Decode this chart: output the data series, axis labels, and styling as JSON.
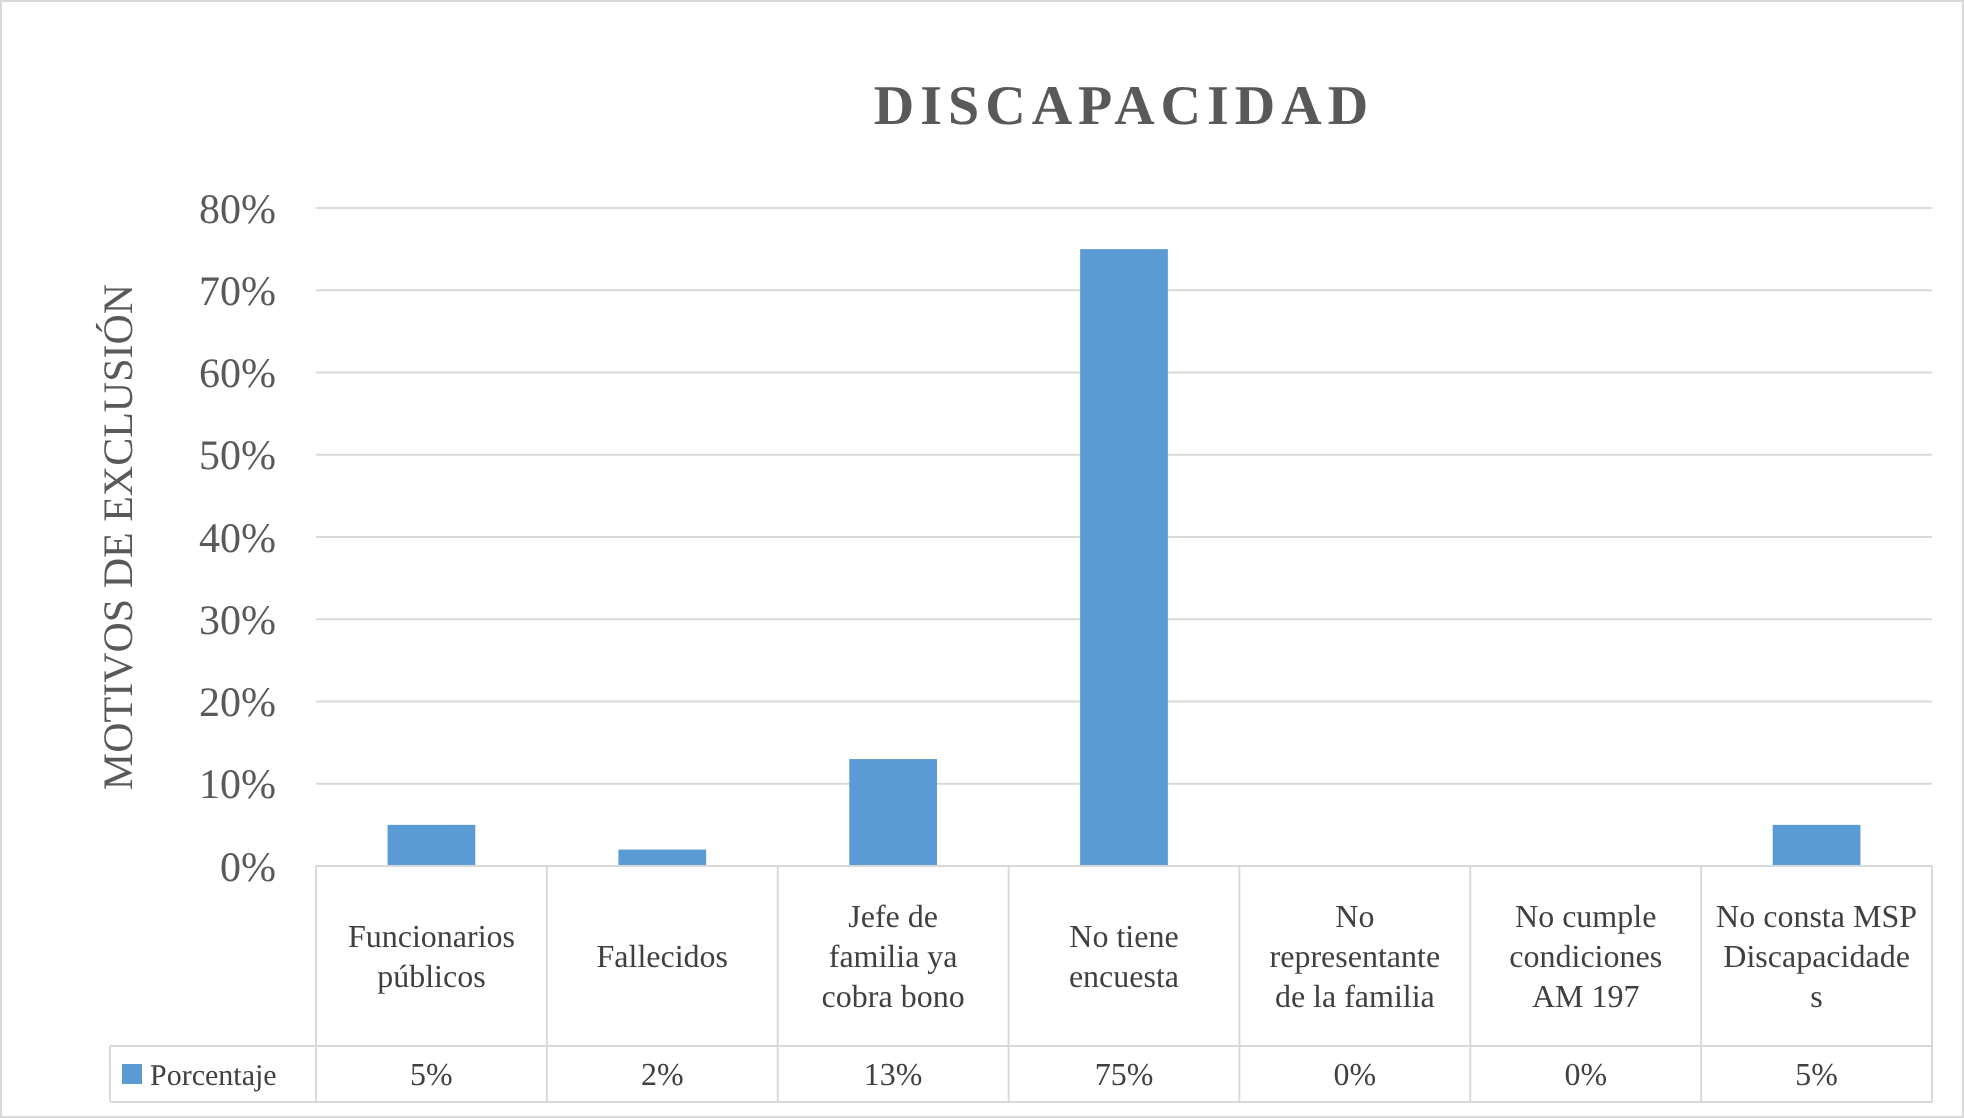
{
  "chart_data": {
    "type": "bar",
    "title": "DISCAPACIDAD",
    "ylabel": "MOTIVOS DE EXCLUSIÓN",
    "categories": [
      "Funcionarios públicos",
      "Fallecidos",
      "Jefe de familia ya cobra bono",
      "No tiene encuesta",
      "No representante de la familia",
      "No cumple condiciones AM 197",
      "No consta MSP Discapacidades"
    ],
    "series": [
      {
        "name": "Porcentaje",
        "color": "#5b9bd5",
        "values": [
          5,
          2,
          13,
          75,
          0,
          0,
          5
        ],
        "value_labels": [
          "5%",
          "2%",
          "13%",
          "75%",
          "0%",
          "0%",
          "5%"
        ]
      }
    ],
    "ylim": [
      0,
      80
    ],
    "yticks": [
      {
        "value": 0,
        "label": "0%"
      },
      {
        "value": 10,
        "label": "10%"
      },
      {
        "value": 20,
        "label": "20%"
      },
      {
        "value": 30,
        "label": "30%"
      },
      {
        "value": 40,
        "label": "40%"
      },
      {
        "value": 50,
        "label": "50%"
      },
      {
        "value": 60,
        "label": "60%"
      },
      {
        "value": 70,
        "label": "70%"
      },
      {
        "value": 80,
        "label": "80%"
      }
    ],
    "grid": "y",
    "legend": "bottom left"
  }
}
